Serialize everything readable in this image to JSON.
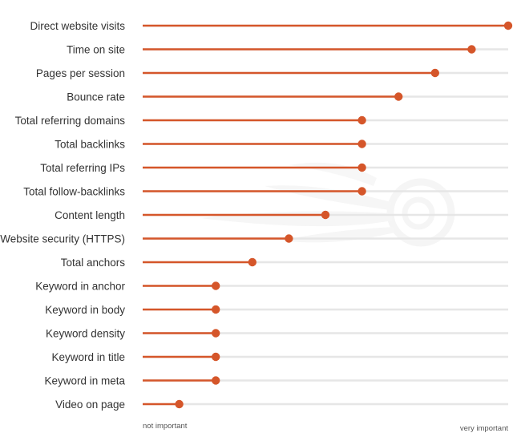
{
  "chart_data": {
    "type": "lollipop",
    "orientation": "horizontal",
    "title": "",
    "xlabel": "",
    "ylabel": "",
    "categories": [
      "Direct website visits",
      "Time on site",
      "Pages per session",
      "Bounce rate",
      "Total referring domains",
      "Total backlinks",
      "Total referring IPs",
      "Total follow-backlinks",
      "Content length",
      "Website security (HTTPS)",
      "Total anchors",
      "Keyword in anchor",
      "Keyword in body",
      "Keyword density",
      "Keyword in title",
      "Keyword in meta",
      "Video on page"
    ],
    "values": [
      100,
      90,
      80,
      70,
      60,
      60,
      60,
      60,
      50,
      40,
      30,
      20,
      20,
      20,
      20,
      20,
      10
    ],
    "xlim": [
      0,
      100
    ],
    "axis_labels": {
      "min": "not important",
      "max": "very important"
    },
    "grid": false,
    "colors": {
      "marker": "#d5562a",
      "track": "#e6e6e6",
      "text": "#333333"
    }
  }
}
